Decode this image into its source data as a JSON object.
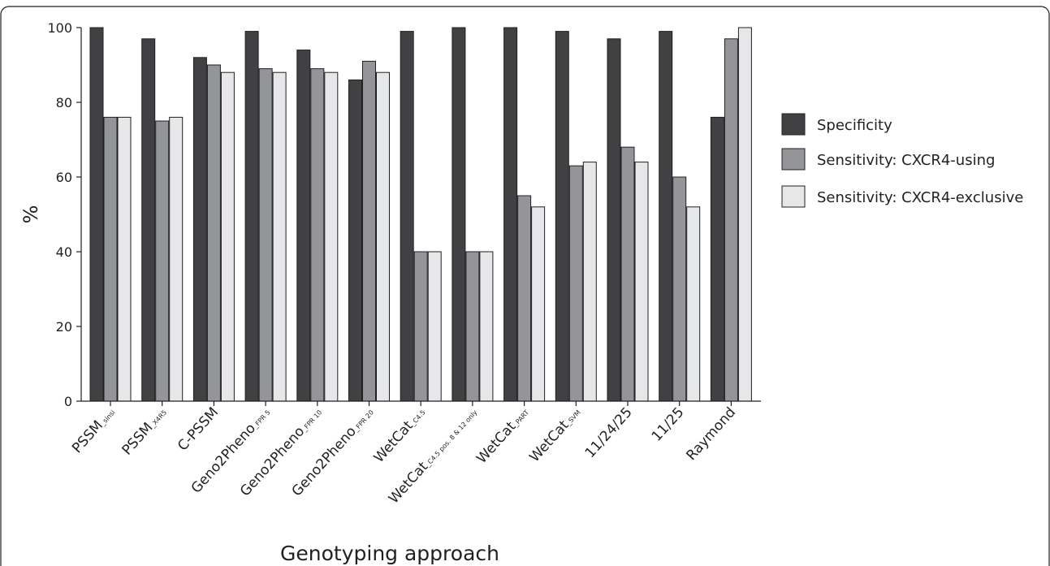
{
  "chart_data": {
    "type": "bar",
    "xlabel": "Genotyping approach",
    "ylabel": "%",
    "ylim": [
      0,
      100
    ],
    "yticks": [
      0,
      20,
      40,
      60,
      80,
      100
    ],
    "grid": false,
    "legend_position": "right",
    "categories": [
      {
        "main": "PSSM",
        "sub": "_sinsi"
      },
      {
        "main": "PSSM",
        "sub": "_X4R5"
      },
      {
        "main": "C-PSSM",
        "sub": ""
      },
      {
        "main": "Geno2Pheno",
        "sub": "_FPR 5"
      },
      {
        "main": "Geno2Pheno",
        "sub": "_FPR 10"
      },
      {
        "main": "Geno2Pheno",
        "sub": "_FPR 20"
      },
      {
        "main": "WetCat",
        "sub": "_C4.5"
      },
      {
        "main": "WetCat",
        "sub": "_C4.5 pos. 8 & 12 only"
      },
      {
        "main": "WetCat",
        "sub": "_PART"
      },
      {
        "main": "WetCat",
        "sub": "_SVM"
      },
      {
        "main": "11/24/25",
        "sub": ""
      },
      {
        "main": "11/25",
        "sub": ""
      },
      {
        "main": "Raymond",
        "sub": ""
      }
    ],
    "series": [
      {
        "name": "Specificity",
        "color": "#414042",
        "values": [
          100,
          97,
          92,
          99,
          94,
          86,
          99,
          100,
          100,
          99,
          97,
          99,
          76
        ]
      },
      {
        "name": "Sensitivity: CXCR4-using",
        "color": "#939598",
        "values": [
          76,
          75,
          90,
          89,
          89,
          91,
          40,
          40,
          55,
          63,
          68,
          60,
          97
        ]
      },
      {
        "name": "Sensitivity: CXCR4-exclusive",
        "color": "#e6e7e8",
        "values": [
          76,
          76,
          88,
          88,
          88,
          88,
          40,
          40,
          52,
          64,
          64,
          52,
          100
        ]
      }
    ]
  }
}
